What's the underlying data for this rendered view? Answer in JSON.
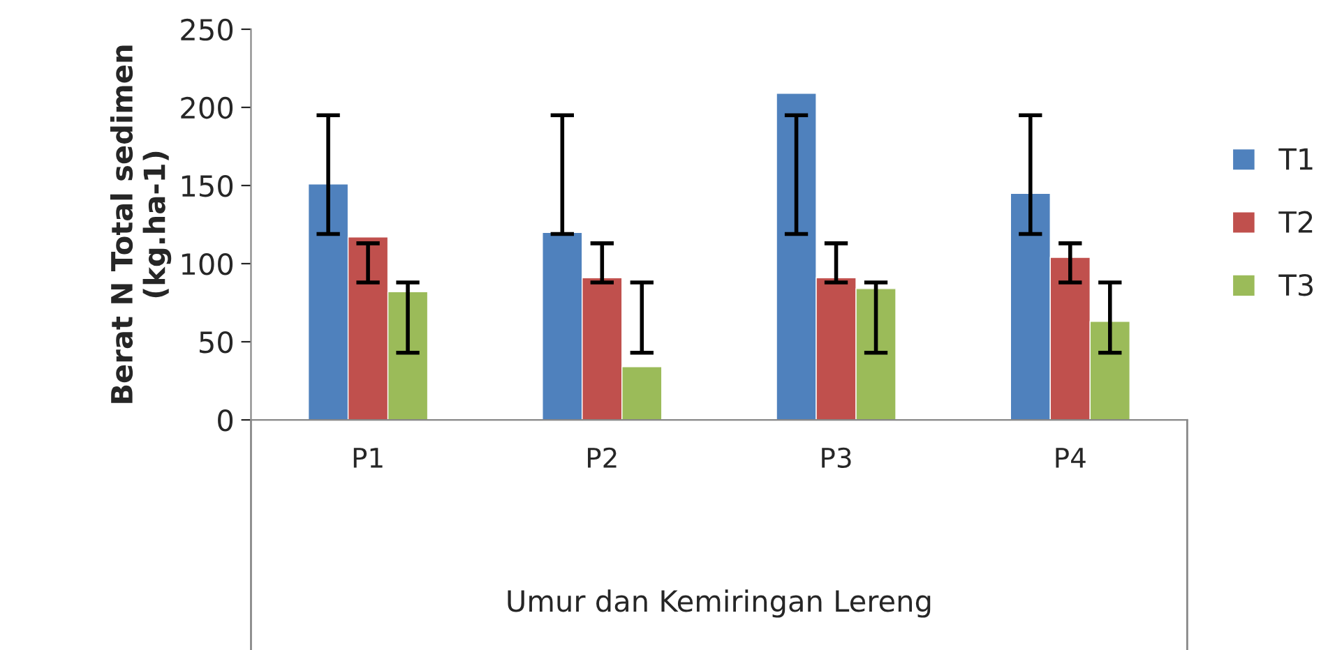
{
  "chart_data": {
    "type": "bar",
    "xlabel": "Umur dan Kemiringan Lereng",
    "ylabel": "Berat N Total sedimen\n(kg.ha-1)",
    "categories": [
      "P1",
      "P2",
      "P3",
      "P4"
    ],
    "series": [
      {
        "name": "T1",
        "color": "#4f81bd",
        "values": [
          151,
          120,
          209,
          145
        ],
        "errors": [
          [
            119,
            195
          ],
          [
            119,
            195
          ],
          [
            119,
            195
          ],
          [
            119,
            195
          ]
        ]
      },
      {
        "name": "T2",
        "color": "#c0504d",
        "values": [
          117,
          91,
          91,
          104
        ],
        "errors": [
          [
            88,
            113
          ],
          [
            88,
            113
          ],
          [
            88,
            113
          ],
          [
            88,
            113
          ]
        ]
      },
      {
        "name": "T3",
        "color": "#9bbb59",
        "values": [
          82,
          34,
          84,
          63
        ],
        "errors": [
          [
            43,
            88
          ],
          [
            43,
            88
          ],
          [
            43,
            88
          ],
          [
            43,
            88
          ]
        ]
      }
    ],
    "ylim": [
      0,
      250
    ],
    "yticks": [
      0,
      50,
      100,
      150,
      200,
      250
    ],
    "grid": false,
    "legend": "right"
  }
}
